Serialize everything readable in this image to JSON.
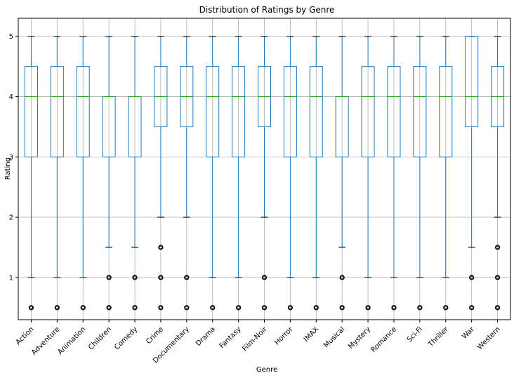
{
  "chart_data": {
    "type": "boxplot",
    "title": "Distribution of Ratings by Genre",
    "xlabel": "Genre",
    "ylabel": "Rating",
    "ylim": [
      0.3,
      5.3
    ],
    "yticks": [
      1,
      2,
      3,
      4,
      5
    ],
    "grid": true,
    "categories": [
      "Action",
      "Adventure",
      "Animation",
      "Children",
      "Comedy",
      "Crime",
      "Documentary",
      "Drama",
      "Fantasy",
      "Film-Noir",
      "Horror",
      "IMAX",
      "Musical",
      "Mystery",
      "Romance",
      "Sci-Fi",
      "Thriller",
      "War",
      "Western"
    ],
    "boxes": [
      {
        "whislo": 1.0,
        "q1": 3.0,
        "med": 4.0,
        "q3": 4.5,
        "whishi": 5.0,
        "fliers": [
          0.5
        ]
      },
      {
        "whislo": 1.0,
        "q1": 3.0,
        "med": 4.0,
        "q3": 4.5,
        "whishi": 5.0,
        "fliers": [
          0.5
        ]
      },
      {
        "whislo": 1.0,
        "q1": 3.0,
        "med": 4.0,
        "q3": 4.5,
        "whishi": 5.0,
        "fliers": [
          0.5
        ]
      },
      {
        "whislo": 1.5,
        "q1": 3.0,
        "med": 4.0,
        "q3": 4.0,
        "whishi": 5.0,
        "fliers": [
          1.0,
          0.5
        ]
      },
      {
        "whislo": 1.5,
        "q1": 3.0,
        "med": 4.0,
        "q3": 4.0,
        "whishi": 5.0,
        "fliers": [
          1.0,
          0.5
        ]
      },
      {
        "whislo": 2.0,
        "q1": 3.5,
        "med": 4.0,
        "q3": 4.5,
        "whishi": 5.0,
        "fliers": [
          1.5,
          1.0,
          0.5
        ]
      },
      {
        "whislo": 2.0,
        "q1": 3.5,
        "med": 4.0,
        "q3": 4.5,
        "whishi": 5.0,
        "fliers": [
          1.0,
          0.5
        ]
      },
      {
        "whislo": 1.0,
        "q1": 3.0,
        "med": 4.0,
        "q3": 4.5,
        "whishi": 5.0,
        "fliers": [
          0.5
        ]
      },
      {
        "whislo": 1.0,
        "q1": 3.0,
        "med": 4.0,
        "q3": 4.5,
        "whishi": 5.0,
        "fliers": [
          0.5
        ]
      },
      {
        "whislo": 2.0,
        "q1": 3.5,
        "med": 4.0,
        "q3": 4.5,
        "whishi": 5.0,
        "fliers": [
          1.0,
          0.5
        ]
      },
      {
        "whislo": 1.0,
        "q1": 3.0,
        "med": 4.0,
        "q3": 4.5,
        "whishi": 5.0,
        "fliers": [
          0.5
        ]
      },
      {
        "whislo": 1.0,
        "q1": 3.0,
        "med": 4.0,
        "q3": 4.5,
        "whishi": 5.0,
        "fliers": [
          0.5
        ]
      },
      {
        "whislo": 1.5,
        "q1": 3.0,
        "med": 4.0,
        "q3": 4.0,
        "whishi": 5.0,
        "fliers": [
          1.0,
          0.5
        ]
      },
      {
        "whislo": 1.0,
        "q1": 3.0,
        "med": 4.0,
        "q3": 4.5,
        "whishi": 5.0,
        "fliers": [
          0.5
        ]
      },
      {
        "whislo": 1.0,
        "q1": 3.0,
        "med": 4.0,
        "q3": 4.5,
        "whishi": 5.0,
        "fliers": [
          0.5
        ]
      },
      {
        "whislo": 1.0,
        "q1": 3.0,
        "med": 4.0,
        "q3": 4.5,
        "whishi": 5.0,
        "fliers": [
          0.5
        ]
      },
      {
        "whislo": 1.0,
        "q1": 3.0,
        "med": 4.0,
        "q3": 4.5,
        "whishi": 5.0,
        "fliers": [
          0.5
        ]
      },
      {
        "whislo": 1.5,
        "q1": 3.5,
        "med": 4.0,
        "q3": 5.0,
        "whishi": 5.0,
        "fliers": [
          1.0,
          0.5
        ]
      },
      {
        "whislo": 2.0,
        "q1": 3.5,
        "med": 4.0,
        "q3": 4.5,
        "whishi": 5.0,
        "fliers": [
          1.5,
          1.0,
          0.5
        ]
      }
    ],
    "colors": {
      "box": "#1f77b4",
      "median": "#2ca02c",
      "whisker_cap": "#000000",
      "grid": "#b0b0b0",
      "flier": "#000000"
    }
  }
}
